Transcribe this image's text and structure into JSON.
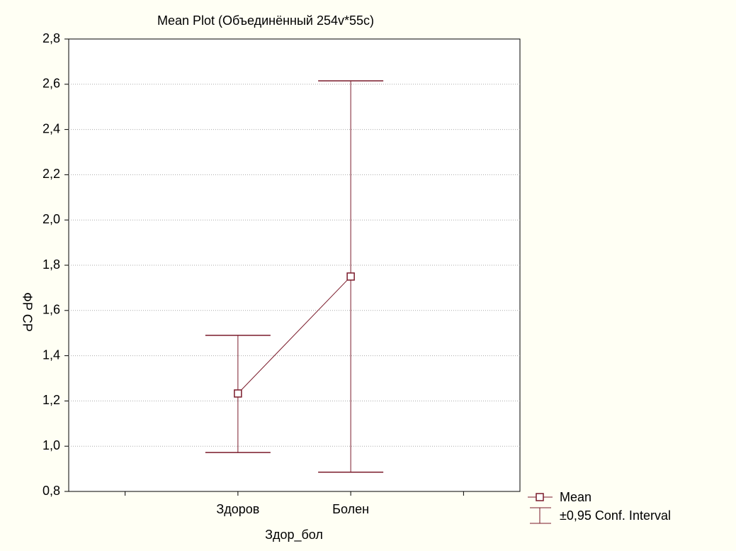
{
  "chart_data": {
    "type": "line",
    "title": "Mean Plot (Объединённый 254v*55c)",
    "x_label": "Здор_бол",
    "y_label": "ФР СР",
    "categories": [
      null,
      "Здоров",
      "Болен",
      null
    ],
    "series": [
      {
        "name": "Mean",
        "color": "#7a1a2a",
        "values": [
          null,
          1.233,
          1.75,
          null
        ],
        "lower": [
          null,
          0.972,
          0.885,
          null
        ],
        "upper": [
          null,
          1.49,
          2.615,
          null
        ]
      }
    ],
    "ci_name": "±0,95 Conf. Interval",
    "ylim": [
      0.8,
      2.8
    ],
    "yticks": [
      {
        "value": 0.8,
        "label": "0,8"
      },
      {
        "value": 1.0,
        "label": "1,0"
      },
      {
        "value": 1.2,
        "label": "1,2"
      },
      {
        "value": 1.4,
        "label": "1,4"
      },
      {
        "value": 1.6,
        "label": "1,6"
      },
      {
        "value": 1.8,
        "label": "1,8"
      },
      {
        "value": 2.0,
        "label": "2,0"
      },
      {
        "value": 2.2,
        "label": "2,2"
      },
      {
        "value": 2.4,
        "label": "2,4"
      },
      {
        "value": 2.6,
        "label": "2,6"
      },
      {
        "value": 2.8,
        "label": "2,8"
      }
    ],
    "grid": true
  }
}
